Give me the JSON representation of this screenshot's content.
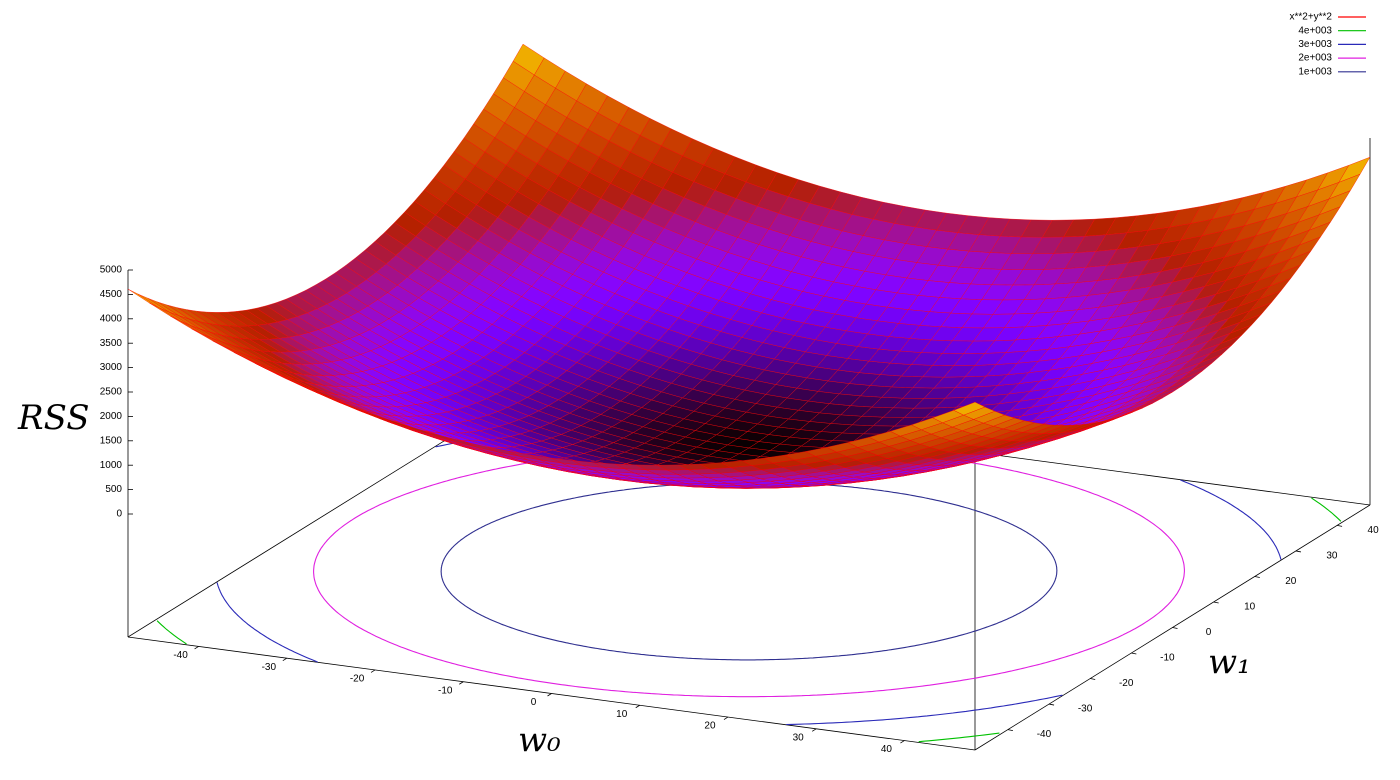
{
  "chart_data": {
    "type": "surface",
    "series": [
      {
        "name": "x**2+y**2",
        "color": "#ff0000"
      },
      {
        "name": "4e+003",
        "color": "#00c000",
        "level": 4000
      },
      {
        "name": "3e+003",
        "color": "#2a2ab8",
        "level": 3000
      },
      {
        "name": "2e+003",
        "color": "#e020e0",
        "level": 2000
      },
      {
        "name": "1e+003",
        "color": "#303090",
        "level": 1000
      }
    ],
    "x_label": "w₀",
    "y_label": "w₁",
    "z_label": "RSS",
    "xlim": [
      -48,
      48
    ],
    "ylim": [
      -48,
      48
    ],
    "zlim": [
      0,
      5000
    ],
    "xticks": [
      -40,
      -30,
      -20,
      -10,
      0,
      10,
      20,
      30,
      40
    ],
    "yticks": [
      -40,
      -30,
      -20,
      -10,
      0,
      10,
      20,
      30,
      40
    ],
    "zticks": [
      0,
      500,
      1000,
      1500,
      2000,
      2500,
      3000,
      3500,
      4000,
      4500,
      5000
    ],
    "isosamples": 40
  }
}
